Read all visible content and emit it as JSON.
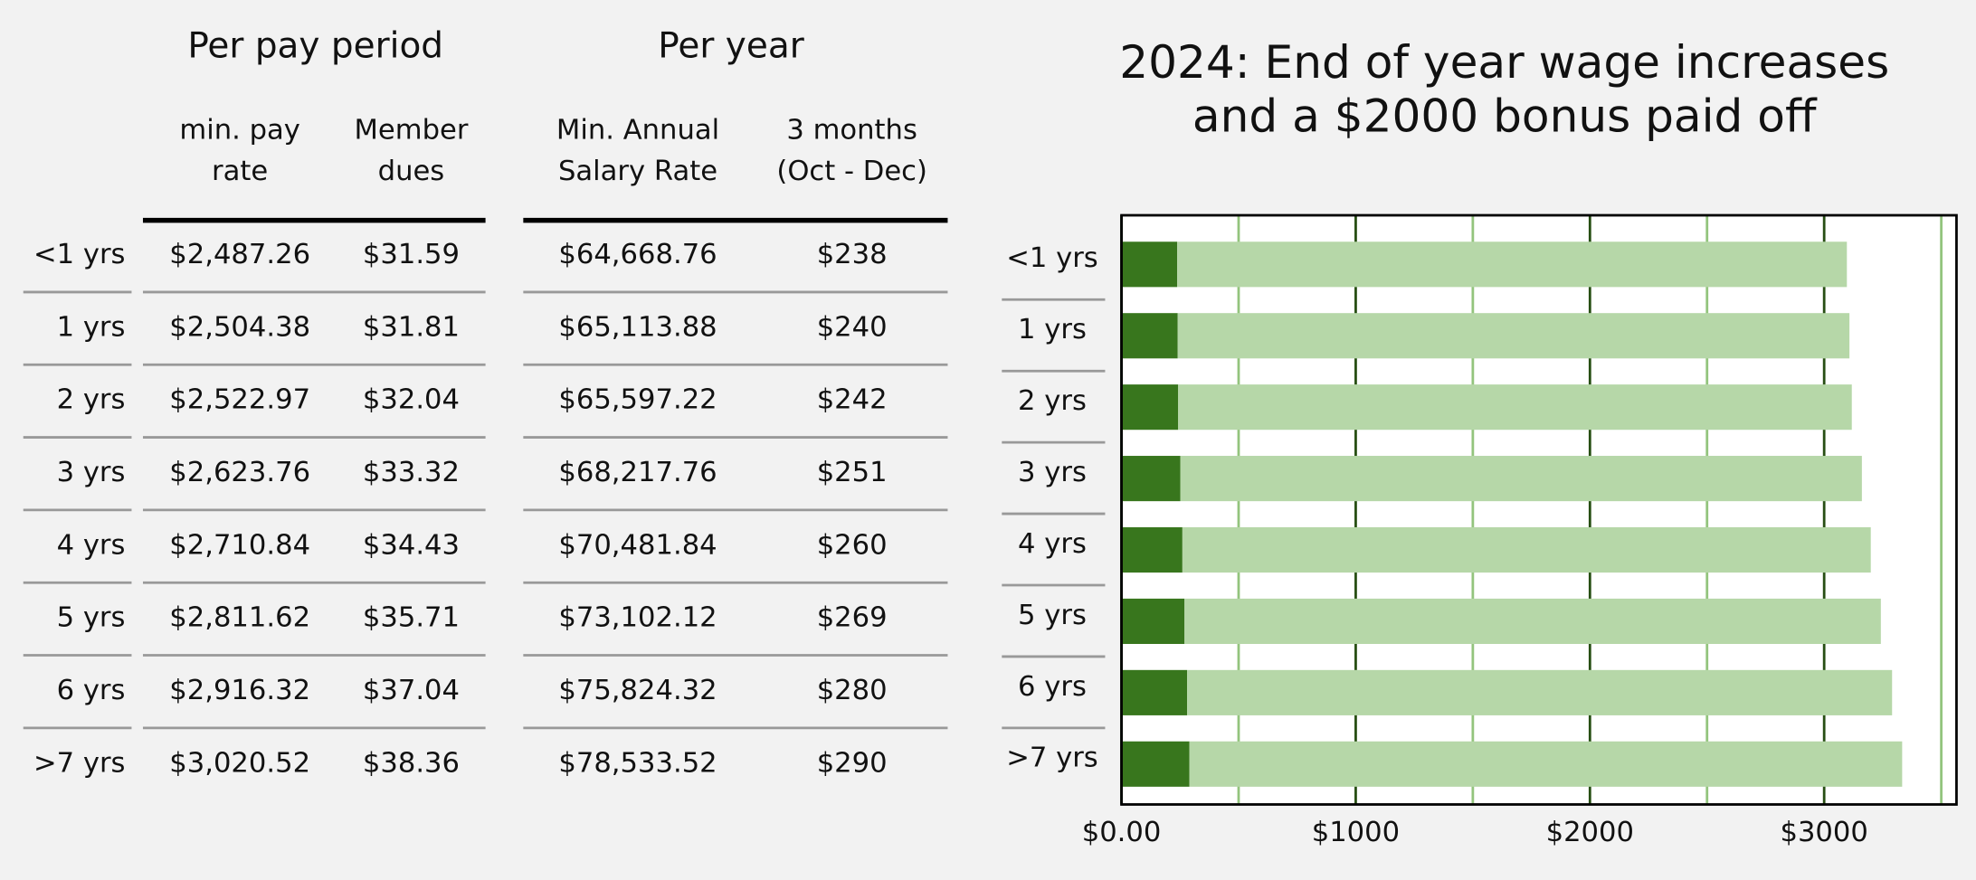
{
  "table": {
    "groups": [
      "Per pay period",
      "Per year"
    ],
    "columns": [
      [
        "min. pay",
        "rate"
      ],
      [
        "Member",
        "dues"
      ],
      [
        "Min. Annual",
        "Salary Rate"
      ],
      [
        "3 months",
        "(Oct - Dec)"
      ]
    ],
    "rows": [
      [
        "<1 yrs",
        "$2,487.26",
        "$31.59",
        "$64,668.76",
        "$238"
      ],
      [
        "1 yrs",
        "$2,504.38",
        "$31.81",
        "$65,113.88",
        "$240"
      ],
      [
        "2 yrs",
        "$2,522.97",
        "$32.04",
        "$65,597.22",
        "$242"
      ],
      [
        "3 yrs",
        "$2,623.76",
        "$33.32",
        "$68,217.76",
        "$251"
      ],
      [
        "4 yrs",
        "$2,710.84",
        "$34.43",
        "$70,481.84",
        "$260"
      ],
      [
        "5 yrs",
        "$2,811.62",
        "$35.71",
        "$73,102.12",
        "$269"
      ],
      [
        "6 yrs",
        "$2,916.32",
        "$37.04",
        "$75,824.32",
        "$280"
      ],
      [
        ">7 yrs",
        "$3,020.52",
        "$38.36",
        "$78,533.52",
        "$290"
      ]
    ]
  },
  "chart_data": {
    "type": "stacked-barh",
    "title": [
      "2024: End of year wage increases",
      "and a $2000 bonus paid off"
    ],
    "categories": [
      "<1 yrs",
      "1 yrs",
      "2 yrs",
      "3 yrs",
      "4 yrs",
      "5 yrs",
      "6 yrs",
      ">7 yrs"
    ],
    "series": [
      {
        "color": "#38761d",
        "values": [
          238,
          240,
          242,
          251,
          260,
          269,
          280,
          290
        ]
      },
      {
        "color": "#b6d7a8",
        "values": [
          2859,
          2868,
          2876,
          2910,
          2939,
          2973,
          3010,
          3043
        ]
      }
    ],
    "xlim": [
      0,
      3565
    ],
    "xticks": [
      {
        "value": 0,
        "label": "$0.00"
      },
      {
        "value": 1000,
        "label": "$1000"
      },
      {
        "value": 2000,
        "label": "$2000"
      },
      {
        "value": 3000,
        "label": "$3000"
      }
    ],
    "minor_xticks": [
      500,
      1500,
      2500,
      3500
    ],
    "grid": true
  }
}
